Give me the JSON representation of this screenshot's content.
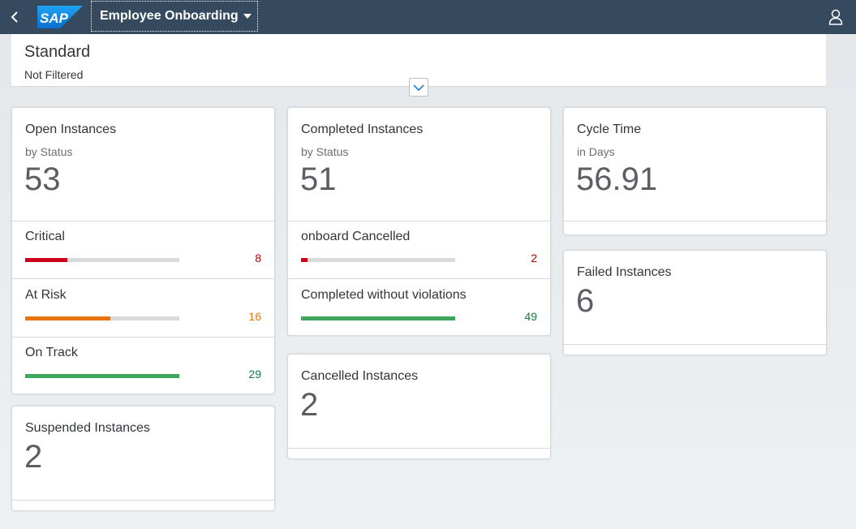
{
  "shell": {
    "logo_text": "SAP",
    "app_title": "Employee Onboarding"
  },
  "header": {
    "variant": "Standard",
    "filter_status": "Not Filtered"
  },
  "colors": {
    "critical": "#d0021b",
    "at_risk": "#e9730c",
    "on_track": "#3fa75c",
    "critical_text": "#bb0000",
    "at_risk_text": "#e9730c",
    "on_track_text": "#107e3e"
  },
  "cards": {
    "open": {
      "title": "Open Instances",
      "subtitle": "by Status",
      "kpi": "53",
      "rows": [
        {
          "label": "Critical",
          "value": "8",
          "fraction": 0.276
        },
        {
          "label": "At Risk",
          "value": "16",
          "fraction": 0.552
        },
        {
          "label": "On Track",
          "value": "29",
          "fraction": 1.0
        }
      ]
    },
    "completed": {
      "title": "Completed Instances",
      "subtitle": "by Status",
      "kpi": "51",
      "rows": [
        {
          "label": "onboard Cancelled",
          "value": "2",
          "fraction": 0.041
        },
        {
          "label": "Completed without violations",
          "value": "49",
          "fraction": 1.0
        }
      ]
    },
    "cycle": {
      "title": "Cycle Time",
      "subtitle": "in Days",
      "kpi": "56.91"
    },
    "failed": {
      "title": "Failed Instances",
      "kpi": "6"
    },
    "cancelled": {
      "title": "Cancelled Instances",
      "kpi": "2"
    },
    "suspended": {
      "title": "Suspended Instances",
      "kpi": "2"
    }
  }
}
